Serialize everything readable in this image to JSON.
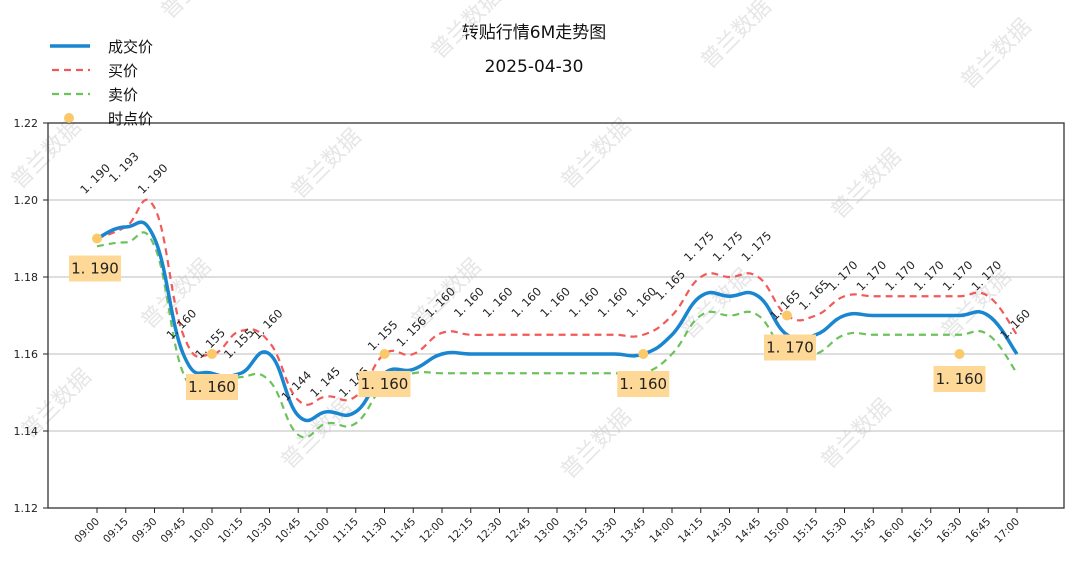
{
  "header": {
    "title": "转贴行情6M走势图",
    "date": "2025-04-30"
  },
  "legend": [
    {
      "label": "成交价",
      "color": "#1a86d0",
      "style": "solid"
    },
    {
      "label": "买价",
      "color": "#f25a5a",
      "style": "dashed"
    },
    {
      "label": "卖价",
      "color": "#6cc35b",
      "style": "dashed"
    },
    {
      "label": "时点价",
      "color": "#fbc86a",
      "style": "marker"
    }
  ],
  "watermark": "普兰数据",
  "chart_data": {
    "type": "line",
    "title": "转贴行情6M走势图",
    "subtitle": "2025-04-30",
    "xlabel": "",
    "ylabel": "",
    "ylim": [
      1.12,
      1.22
    ],
    "yticks": [
      "1.12",
      "1.14",
      "1.16",
      "1.18",
      "1.20",
      "1.22"
    ],
    "grid": "horizontal",
    "legend_position": "upper-left",
    "x": [
      "09:00",
      "09:15",
      "09:30",
      "09:45",
      "10:00",
      "10:15",
      "10:30",
      "10:45",
      "11:00",
      "11:15",
      "11:30",
      "11:45",
      "12:00",
      "12:15",
      "12:30",
      "12:45",
      "13:00",
      "13:15",
      "13:30",
      "13:45",
      "14:00",
      "14:15",
      "14:30",
      "14:45",
      "15:00",
      "15:15",
      "15:30",
      "15:45",
      "16:00",
      "16:15",
      "16:30",
      "16:45",
      "17:00"
    ],
    "series": [
      {
        "name": "成交价",
        "values": [
          1.19,
          1.193,
          1.19,
          1.16,
          1.155,
          1.155,
          1.16,
          1.144,
          1.145,
          1.145,
          1.155,
          1.156,
          1.16,
          1.16,
          1.16,
          1.16,
          1.16,
          1.16,
          1.16,
          1.16,
          1.165,
          1.175,
          1.175,
          1.175,
          1.165,
          1.165,
          1.17,
          1.17,
          1.17,
          1.17,
          1.17,
          1.17,
          1.16
        ]
      },
      {
        "name": "买价",
        "values": [
          1.19,
          1.193,
          1.198,
          1.165,
          1.16,
          1.166,
          1.163,
          1.148,
          1.149,
          1.149,
          1.16,
          1.16,
          1.1655,
          1.165,
          1.165,
          1.165,
          1.165,
          1.165,
          1.165,
          1.165,
          1.17,
          1.18,
          1.18,
          1.18,
          1.17,
          1.17,
          1.175,
          1.175,
          1.175,
          1.175,
          1.175,
          1.175,
          1.165
        ]
      },
      {
        "name": "卖价",
        "values": [
          1.188,
          1.189,
          1.188,
          1.155,
          1.152,
          1.154,
          1.153,
          1.139,
          1.142,
          1.142,
          1.152,
          1.155,
          1.155,
          1.155,
          1.155,
          1.155,
          1.155,
          1.155,
          1.155,
          1.155,
          1.16,
          1.17,
          1.17,
          1.17,
          1.16,
          1.16,
          1.165,
          1.165,
          1.165,
          1.165,
          1.165,
          1.165,
          1.155
        ]
      }
    ],
    "point_prices": [
      {
        "x": "09:00",
        "value": 1.19,
        "label": "1.190"
      },
      {
        "x": "10:00",
        "value": 1.16,
        "label": "1.160"
      },
      {
        "x": "11:30",
        "value": 1.16,
        "label": "1.160"
      },
      {
        "x": "13:45",
        "value": 1.16,
        "label": "1.160"
      },
      {
        "x": "15:00",
        "value": 1.17,
        "label": "1.170"
      },
      {
        "x": "16:30",
        "value": 1.16,
        "label": "1.160"
      }
    ],
    "annotations": [
      "1.190",
      "1.193",
      "1.190",
      "1.160",
      "1.155",
      "1.155",
      "1.160",
      "1.144",
      "1.145",
      "1.145",
      "1.155",
      "1.156",
      "1.160",
      "1.160",
      "1.160",
      "1.160",
      "1.160",
      "1.160",
      "1.160",
      "1.160",
      "1.165",
      "1.175",
      "1.175",
      "1.175",
      "1.165",
      "1.165",
      "1.170",
      "1.170",
      "1.170",
      "1.170",
      "1.170",
      "1.170",
      "1.160"
    ]
  }
}
